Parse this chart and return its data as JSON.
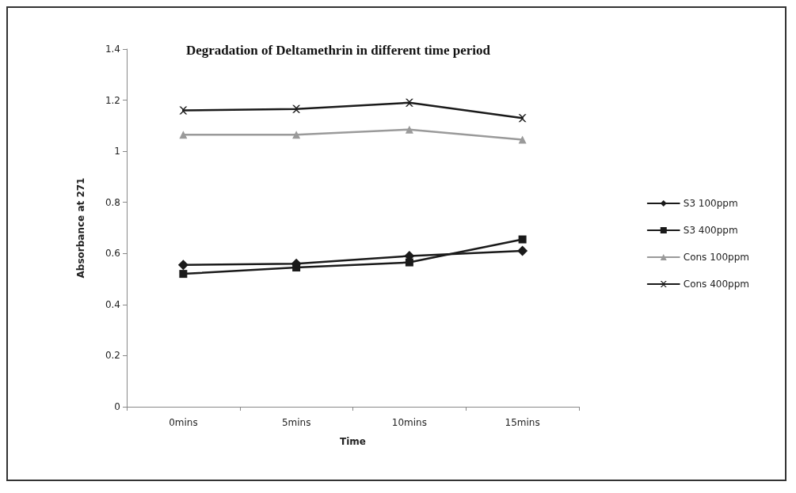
{
  "chart_data": {
    "type": "line",
    "title": "Degradation of Deltamethrin in different time period",
    "xlabel": "Time",
    "ylabel": "Absorbance at 271",
    "categories": [
      "0mins",
      "5mins",
      "10mins",
      "15mins"
    ],
    "series": [
      {
        "name": "S3 100ppm",
        "color": "#1a1a1a",
        "marker": "diamond",
        "values": [
          0.555,
          0.56,
          0.59,
          0.61
        ]
      },
      {
        "name": "S3 400ppm",
        "color": "#1a1a1a",
        "marker": "square",
        "values": [
          0.52,
          0.545,
          0.565,
          0.655
        ]
      },
      {
        "name": "Cons 100ppm",
        "color": "#9a9a9a",
        "marker": "triangle",
        "values": [
          1.065,
          1.065,
          1.085,
          1.045
        ]
      },
      {
        "name": "Cons 400ppm",
        "color": "#1a1a1a",
        "marker": "cross",
        "values": [
          1.16,
          1.165,
          1.19,
          1.13
        ]
      }
    ],
    "ylim": [
      0,
      1.4
    ],
    "yticks": [
      0,
      0.2,
      0.4,
      0.6,
      0.8,
      1,
      1.2,
      1.4
    ],
    "grid": false,
    "legend": "right"
  }
}
